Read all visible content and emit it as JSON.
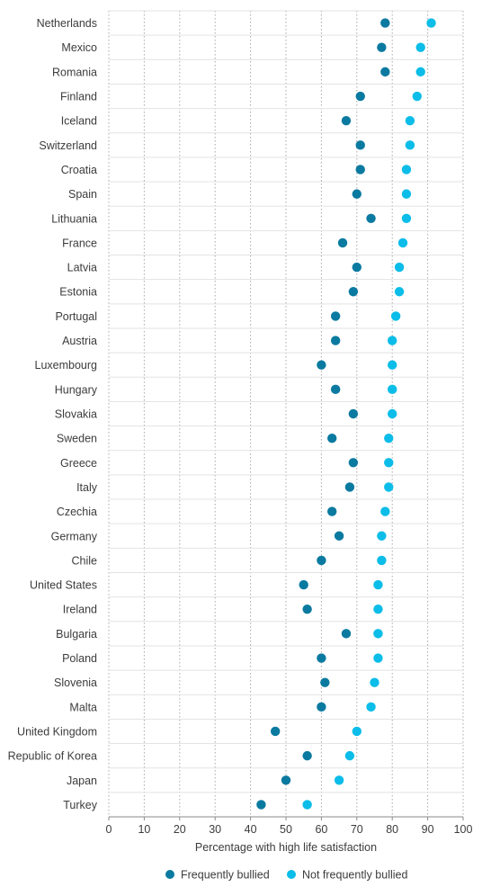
{
  "chart_data": {
    "type": "scatter",
    "title": "",
    "xlabel": "Percentage with high life satisfaction",
    "ylabel": "",
    "xlim": [
      0,
      100
    ],
    "xticks": [
      0,
      10,
      20,
      30,
      40,
      50,
      60,
      70,
      80,
      90,
      100
    ],
    "grid": true,
    "legend_position": "bottom",
    "categories": [
      "Netherlands",
      "Mexico",
      "Romania",
      "Finland",
      "Iceland",
      "Switzerland",
      "Croatia",
      "Spain",
      "Lithuania",
      "France",
      "Latvia",
      "Estonia",
      "Portugal",
      "Austria",
      "Luxembourg",
      "Hungary",
      "Slovakia",
      "Sweden",
      "Greece",
      "Italy",
      "Czechia",
      "Germany",
      "Chile",
      "United States",
      "Ireland",
      "Bulgaria",
      "Poland",
      "Slovenia",
      "Malta",
      "United Kingdom",
      "Republic of Korea",
      "Japan",
      "Turkey"
    ],
    "series": [
      {
        "name": "Frequently bullied",
        "color": "#0b7aa0",
        "values": [
          78,
          77,
          78,
          71,
          67,
          71,
          71,
          70,
          74,
          66,
          70,
          69,
          64,
          64,
          60,
          64,
          69,
          63,
          69,
          68,
          63,
          65,
          60,
          55,
          56,
          67,
          60,
          61,
          60,
          47,
          56,
          50,
          43
        ]
      },
      {
        "name": "Not frequently bullied",
        "color": "#0bbde8",
        "values": [
          91,
          88,
          88,
          87,
          85,
          85,
          84,
          84,
          84,
          83,
          82,
          82,
          81,
          80,
          80,
          80,
          80,
          79,
          79,
          79,
          78,
          77,
          77,
          76,
          76,
          76,
          76,
          75,
          74,
          70,
          68,
          65,
          56
        ]
      }
    ]
  }
}
